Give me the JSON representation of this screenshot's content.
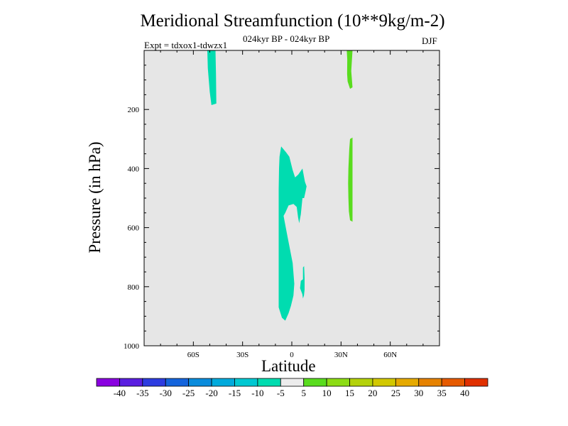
{
  "title": "Meridional Streamfunction (10**9kg/m-2)",
  "subtitle_center": "024kyr BP - 024kyr BP",
  "subtitle_left": "Expt = tdxox1-tdwzx1",
  "season": "DJF",
  "chart_data": {
    "type": "contour",
    "title": "Meridional Streamfunction (10**9kg/m-2)",
    "xlabel": "Latitude",
    "ylabel": "Pressure (in hPa)",
    "xlim": [
      -90,
      90
    ],
    "ylim": [
      1000,
      0
    ],
    "x_ticks": [
      {
        "value": -60,
        "label": "60S"
      },
      {
        "value": -30,
        "label": "30S"
      },
      {
        "value": 0,
        "label": "0"
      },
      {
        "value": 30,
        "label": "30N"
      },
      {
        "value": 60,
        "label": "60N"
      }
    ],
    "y_ticks": [
      {
        "value": 200,
        "label": "200"
      },
      {
        "value": 400,
        "label": "400"
      },
      {
        "value": 600,
        "label": "600"
      },
      {
        "value": 800,
        "label": "800"
      },
      {
        "value": 1000,
        "label": "1000"
      }
    ],
    "background_color": "#e6e6e6",
    "regions": [
      {
        "name": "neg-region-sh-upper",
        "level": "-10 to -5",
        "color": "#00dcb0",
        "points": [
          [
            -51.5,
            0
          ],
          [
            -46.5,
            0
          ],
          [
            -46.2,
            80
          ],
          [
            -46,
            180
          ],
          [
            -49,
            185
          ],
          [
            -50,
            140
          ],
          [
            -51.2,
            60
          ]
        ]
      },
      {
        "name": "neg-region-equatorial",
        "level": "-10 to -5",
        "color": "#00dcb0",
        "points": [
          [
            -6.5,
            325
          ],
          [
            -3.5,
            345
          ],
          [
            -1.5,
            360
          ],
          [
            0.5,
            405
          ],
          [
            2,
            430
          ],
          [
            4,
            420
          ],
          [
            6.5,
            400
          ],
          [
            8,
            445
          ],
          [
            9,
            460
          ],
          [
            8.5,
            475
          ],
          [
            7.5,
            500
          ],
          [
            6.5,
            500
          ],
          [
            5.5,
            555
          ],
          [
            4.5,
            585
          ],
          [
            3.8,
            565
          ],
          [
            3,
            530
          ],
          [
            1,
            520
          ],
          [
            -2,
            525
          ],
          [
            -4,
            550
          ],
          [
            -5,
            560
          ],
          [
            -3,
            620
          ],
          [
            0.5,
            720
          ],
          [
            1.5,
            790
          ],
          [
            1,
            830
          ],
          [
            -0.5,
            865
          ],
          [
            -2,
            890
          ],
          [
            -4,
            915
          ],
          [
            -6,
            905
          ],
          [
            -8,
            870
          ],
          [
            -8,
            760
          ],
          [
            -8,
            660
          ],
          [
            -8,
            560
          ],
          [
            -8,
            470
          ],
          [
            -7.8,
            400
          ],
          [
            -7.5,
            360
          ]
        ]
      },
      {
        "name": "neg-region-equatorial-small",
        "level": "-10 to -5",
        "color": "#00dcb0",
        "points": [
          [
            6.8,
            735
          ],
          [
            7.5,
            730
          ],
          [
            7.8,
            770
          ],
          [
            7.8,
            810
          ],
          [
            7.4,
            830
          ],
          [
            6.8,
            840
          ],
          [
            6.4,
            825
          ],
          [
            5,
            805
          ],
          [
            5.5,
            780
          ],
          [
            6.8,
            775
          ]
        ]
      },
      {
        "name": "pos-region-nh-upper",
        "level": "5 to 10",
        "color": "#59dc1e",
        "points": [
          [
            33.5,
            0
          ],
          [
            37,
            0
          ],
          [
            36.2,
            70
          ],
          [
            37,
            125
          ],
          [
            35.5,
            130
          ],
          [
            34,
            105
          ],
          [
            33.7,
            80
          ],
          [
            33.8,
            30
          ]
        ]
      },
      {
        "name": "pos-region-nh-mid",
        "level": "5 to 10",
        "color": "#59dc1e",
        "points": [
          [
            35.5,
            300
          ],
          [
            37,
            295
          ],
          [
            37,
            430
          ],
          [
            37,
            580
          ],
          [
            35.5,
            575
          ],
          [
            34.8,
            545
          ],
          [
            34.5,
            500
          ],
          [
            34.3,
            450
          ],
          [
            34.5,
            400
          ],
          [
            35,
            335
          ]
        ]
      }
    ],
    "colorbar": {
      "labels": [
        "-40",
        "-35",
        "-30",
        "-25",
        "-20",
        "-15",
        "-10",
        "-5",
        "5",
        "10",
        "15",
        "20",
        "25",
        "30",
        "35",
        "40"
      ],
      "colors": [
        "#8a00e0",
        "#5a1ee0",
        "#2d3ce0",
        "#1464dc",
        "#0a8cdc",
        "#00aadc",
        "#00c8d2",
        "#00dcb0",
        "#ececec",
        "#59dc1e",
        "#8cdc14",
        "#b4d20a",
        "#d2c800",
        "#e6aa00",
        "#e68200",
        "#e65a00",
        "#e03000"
      ]
    }
  }
}
